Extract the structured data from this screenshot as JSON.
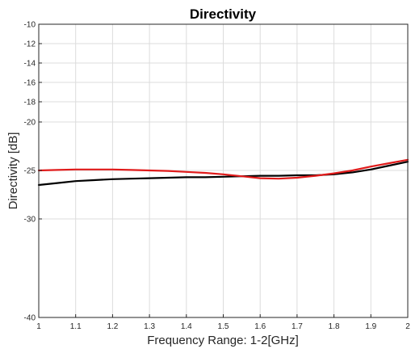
{
  "chart_data": {
    "type": "line",
    "title": "Directivity",
    "xlabel": "Frequency Range: 1-2[GHz]",
    "ylabel": "Directivity [dB]",
    "xlim": [
      1,
      2
    ],
    "ylim": [
      -40,
      -10
    ],
    "x_ticks": [
      1,
      1.1,
      1.2,
      1.3,
      1.4,
      1.5,
      1.6,
      1.7,
      1.8,
      1.9,
      2
    ],
    "x_tick_labels": [
      "1",
      "1.1",
      "1.2",
      "1.3",
      "1.4",
      "1.5",
      "1.6",
      "1.7",
      "1.8",
      "1.9",
      "2"
    ],
    "y_ticks": [
      -40,
      -30,
      -25,
      -20,
      -18,
      -16,
      -14,
      -12,
      -10
    ],
    "y_tick_labels": [
      "-40",
      "-30",
      "-25",
      "-20",
      "-18",
      "-16",
      "-14",
      "-12",
      "-10"
    ],
    "grid": true,
    "legend": false,
    "series": [
      {
        "color": "#000000",
        "x": [
          1.0,
          1.05,
          1.1,
          1.15,
          1.2,
          1.25,
          1.3,
          1.35,
          1.4,
          1.45,
          1.5,
          1.55,
          1.6,
          1.65,
          1.7,
          1.75,
          1.8,
          1.85,
          1.9,
          1.95,
          2.0
        ],
        "y": [
          -26.5,
          -26.3,
          -26.1,
          -26.0,
          -25.9,
          -25.85,
          -25.8,
          -25.75,
          -25.7,
          -25.7,
          -25.65,
          -25.6,
          -25.55,
          -25.55,
          -25.5,
          -25.5,
          -25.4,
          -25.2,
          -24.9,
          -24.5,
          -24.1
        ]
      },
      {
        "color": "#e01b1b",
        "x": [
          1.0,
          1.05,
          1.1,
          1.15,
          1.2,
          1.25,
          1.3,
          1.35,
          1.4,
          1.45,
          1.5,
          1.55,
          1.6,
          1.65,
          1.7,
          1.75,
          1.8,
          1.85,
          1.9,
          1.95,
          2.0
        ],
        "y": [
          -25.0,
          -24.95,
          -24.9,
          -24.9,
          -24.9,
          -24.95,
          -25.0,
          -25.05,
          -25.15,
          -25.25,
          -25.4,
          -25.6,
          -25.8,
          -25.85,
          -25.75,
          -25.55,
          -25.3,
          -25.0,
          -24.6,
          -24.25,
          -23.9
        ]
      }
    ]
  }
}
